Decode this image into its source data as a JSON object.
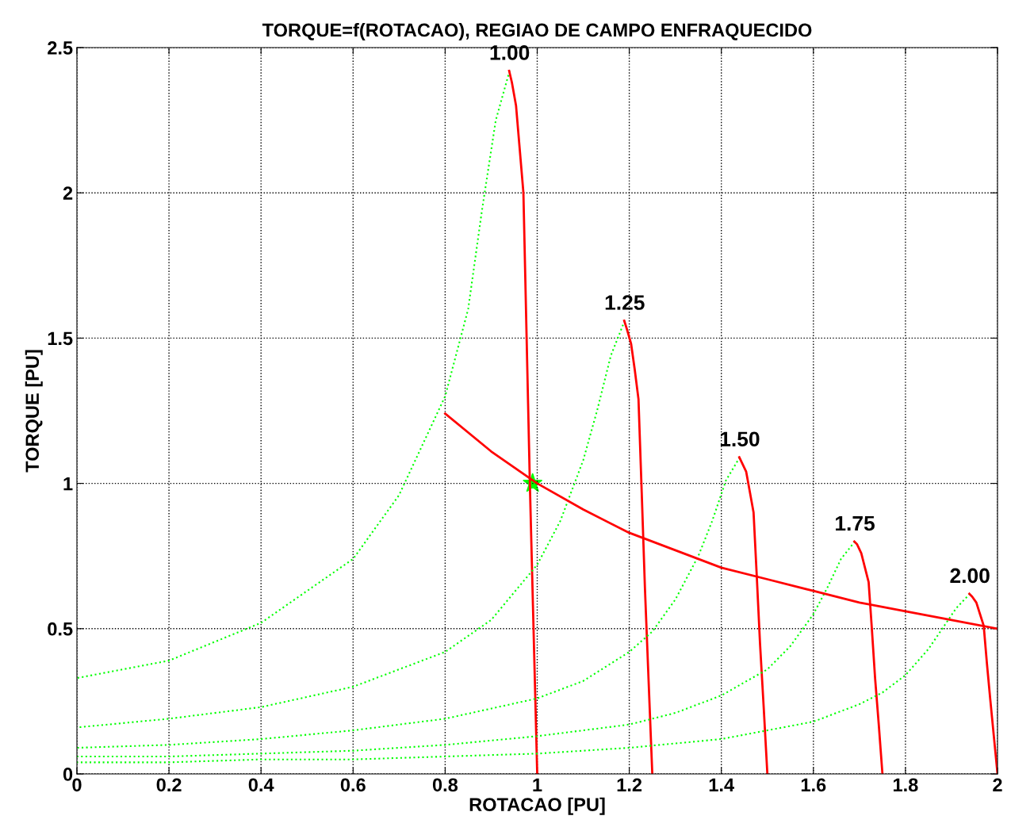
{
  "chart_data": {
    "type": "line",
    "title": "TORQUE=f(ROTACAO), REGIAO DE CAMPO ENFRAQUECIDO",
    "xlabel": "ROTACAO [PU]",
    "ylabel": "TORQUE [PU]",
    "xlim": [
      0,
      2
    ],
    "ylim": [
      0,
      2.5
    ],
    "xticks": [
      0,
      0.2,
      0.4,
      0.6,
      0.8,
      1,
      1.2,
      1.4,
      1.6,
      1.8,
      2
    ],
    "yticks": [
      0,
      0.5,
      1,
      1.5,
      2,
      2.5
    ],
    "grid": true,
    "legend": false,
    "series": [
      {
        "color": "#00ff00",
        "line_style": "dotted",
        "x": [
          0,
          0.2,
          0.4,
          0.6,
          0.7,
          0.8,
          0.85,
          0.88,
          0.91,
          0.94
        ],
        "values": [
          0.33,
          0.39,
          0.52,
          0.74,
          0.96,
          1.3,
          1.6,
          1.94,
          2.25,
          2.42
        ]
      },
      {
        "color": "#ff0000",
        "line_style": "solid",
        "x": [
          0.939,
          0.945,
          0.954,
          0.962,
          0.97,
          0.977,
          0.984,
          0.992,
          1.0
        ],
        "values": [
          2.42,
          2.38,
          2.3,
          2.15,
          2.0,
          1.5,
          1.0,
          0.5,
          0
        ]
      },
      {
        "color": "#00ff00",
        "line_style": "dotted",
        "x": [
          0,
          0.2,
          0.4,
          0.6,
          0.8,
          0.9,
          1.0,
          1.05,
          1.1,
          1.13,
          1.16,
          1.19
        ],
        "values": [
          0.16,
          0.19,
          0.23,
          0.3,
          0.42,
          0.53,
          0.72,
          0.87,
          1.08,
          1.25,
          1.44,
          1.56
        ]
      },
      {
        "color": "#ff0000",
        "line_style": "solid",
        "x": [
          1.189,
          1.195,
          1.204,
          1.212,
          1.22,
          1.227,
          1.234,
          1.242,
          1.25
        ],
        "values": [
          1.56,
          1.53,
          1.48,
          1.39,
          1.29,
          0.97,
          0.64,
          0.32,
          0
        ]
      },
      {
        "color": "#00ff00",
        "line_style": "dotted",
        "x": [
          0,
          0.2,
          0.4,
          0.6,
          0.8,
          1.0,
          1.1,
          1.2,
          1.25,
          1.3,
          1.35,
          1.38,
          1.41,
          1.44
        ],
        "values": [
          0.09,
          0.1,
          0.12,
          0.15,
          0.19,
          0.26,
          0.32,
          0.42,
          0.49,
          0.6,
          0.75,
          0.87,
          1.01,
          1.09
        ]
      },
      {
        "color": "#ff0000",
        "line_style": "solid",
        "x": [
          1.439,
          1.445,
          1.454,
          1.462,
          1.47,
          1.477,
          1.484,
          1.492,
          1.5
        ],
        "values": [
          1.09,
          1.07,
          1.04,
          0.97,
          0.9,
          0.68,
          0.45,
          0.23,
          0
        ]
      },
      {
        "color": "#00ff00",
        "line_style": "dotted",
        "x": [
          0,
          0.2,
          0.4,
          0.6,
          0.8,
          1.0,
          1.2,
          1.3,
          1.4,
          1.5,
          1.55,
          1.6,
          1.63,
          1.66,
          1.69
        ],
        "values": [
          0.06,
          0.06,
          0.07,
          0.08,
          0.1,
          0.13,
          0.17,
          0.21,
          0.27,
          0.36,
          0.44,
          0.55,
          0.64,
          0.74,
          0.8
        ]
      },
      {
        "color": "#ff0000",
        "line_style": "solid",
        "x": [
          1.689,
          1.695,
          1.704,
          1.712,
          1.72,
          1.727,
          1.734,
          1.742,
          1.75
        ],
        "values": [
          0.8,
          0.79,
          0.76,
          0.71,
          0.66,
          0.5,
          0.33,
          0.17,
          0
        ]
      },
      {
        "color": "#00ff00",
        "line_style": "dotted",
        "x": [
          0,
          0.2,
          0.4,
          0.6,
          0.8,
          1.0,
          1.2,
          1.4,
          1.5,
          1.6,
          1.7,
          1.75,
          1.8,
          1.85,
          1.88,
          1.91,
          1.94
        ],
        "values": [
          0.04,
          0.04,
          0.05,
          0.05,
          0.06,
          0.07,
          0.09,
          0.12,
          0.15,
          0.18,
          0.24,
          0.28,
          0.34,
          0.43,
          0.5,
          0.57,
          0.62
        ]
      },
      {
        "color": "#ff0000",
        "line_style": "solid",
        "x": [
          1.939,
          1.945,
          1.954,
          1.962,
          1.97,
          1.977,
          1.984,
          1.992,
          2.0
        ],
        "values": [
          0.62,
          0.61,
          0.59,
          0.55,
          0.51,
          0.38,
          0.26,
          0.13,
          0
        ]
      },
      {
        "color": "#ff0000",
        "line_style": "solid",
        "x": [
          0.8,
          0.9,
          1.0,
          1.1,
          1.2,
          1.3,
          1.4,
          1.5,
          1.6,
          1.7,
          1.8,
          1.9,
          2.0
        ],
        "values": [
          1.24,
          1.11,
          1.0,
          0.91,
          0.83,
          0.77,
          0.71,
          0.67,
          0.63,
          0.59,
          0.56,
          0.53,
          0.5
        ]
      },
      {
        "type": "scatter",
        "color": "#00ff00",
        "marker": "star",
        "x": [
          0.99
        ],
        "values": [
          1.0
        ]
      }
    ],
    "annotations": [
      {
        "text": "1.00",
        "x": 0.94,
        "y": 2.42
      },
      {
        "text": "1.25",
        "x": 1.19,
        "y": 1.56
      },
      {
        "text": "1.50",
        "x": 1.44,
        "y": 1.09
      },
      {
        "text": "1.75",
        "x": 1.69,
        "y": 0.8
      },
      {
        "text": "2.00",
        "x": 1.94,
        "y": 0.62
      }
    ]
  }
}
